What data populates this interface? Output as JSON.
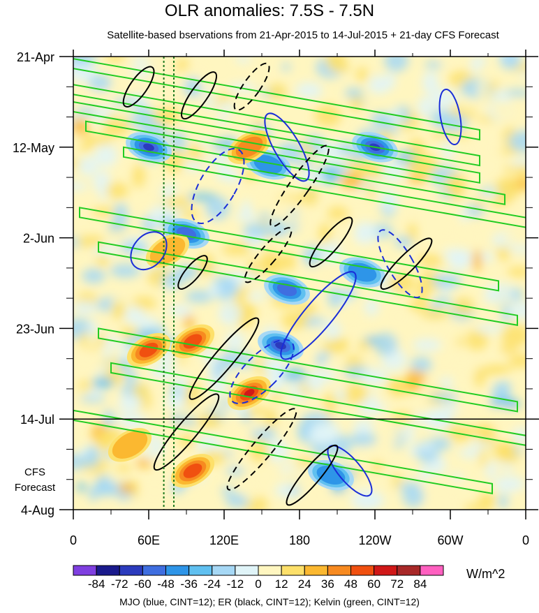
{
  "title": "OLR anomalies: 7.5S - 7.5N",
  "subtitle": "Satellite-based bservations from 21-Apr-2015 to 14-Jul-2015 + 21-day CFS Forecast",
  "forecast_label": [
    "CFS",
    "Forecast"
  ],
  "footer": "MJO (blue, CINT=12); ER (black, CINT=12); Kelvin (green, CINT=12)",
  "colorbar": {
    "units": "W/m^2",
    "levels": [
      -84,
      -72,
      -60,
      -48,
      -36,
      -24,
      -12,
      0,
      12,
      24,
      36,
      48,
      60,
      72,
      84
    ],
    "colors": [
      "#7f3fe0",
      "#1a1a8c",
      "#2b3bbd",
      "#3f6ee0",
      "#2e95e8",
      "#60c0f0",
      "#a6d8f5",
      "#e0f4f8",
      "#fff6c0",
      "#fde06a",
      "#fbb830",
      "#f78a20",
      "#f05010",
      "#d01818",
      "#a82828",
      "#ff60c0"
    ]
  },
  "chart_data": {
    "type": "heatmap",
    "title": "OLR anomalies: 7.5S - 7.5N",
    "subtitle": "Satellite-based bservations from 21-Apr-2015 to 14-Jul-2015 + 21-day CFS Forecast",
    "x_ticks": [
      "0",
      "60E",
      "120E",
      "180",
      "120W",
      "60W",
      "0"
    ],
    "x_range_deg": [
      0,
      360
    ],
    "y_ticks": [
      "21-Apr",
      "12-May",
      "2-Jun",
      "23-Jun",
      "14-Jul",
      "4-Aug"
    ],
    "y_range": [
      "21-Apr-2015",
      "4-Aug-2015"
    ],
    "forecast_start": "14-Jul",
    "units": "W/m^2",
    "vertical_lines_deg": [
      72,
      80
    ],
    "overlays": [
      {
        "name": "MJO",
        "color": "blue",
        "cint": 12
      },
      {
        "name": "ER",
        "color": "black",
        "cint": 12
      },
      {
        "name": "Kelvin",
        "color": "green",
        "cint": 12
      }
    ],
    "anomaly_features": [
      {
        "type": "negative",
        "lon": 60,
        "date": "12-May",
        "value": -72
      },
      {
        "type": "negative",
        "lon": 155,
        "date": "16-May",
        "value": -48
      },
      {
        "type": "negative",
        "lon": 240,
        "date": "12-May",
        "value": -72
      },
      {
        "type": "negative",
        "lon": 90,
        "date": "1-Jun",
        "value": -60
      },
      {
        "type": "negative",
        "lon": 170,
        "date": "14-Jun",
        "value": -60
      },
      {
        "type": "negative",
        "lon": 165,
        "date": "27-Jun",
        "value": -72
      },
      {
        "type": "negative",
        "lon": 230,
        "date": "10-Jun",
        "value": -48
      },
      {
        "type": "negative",
        "lon": 205,
        "date": "27-Jul",
        "value": -48
      },
      {
        "type": "positive",
        "lon": 140,
        "date": "12-May",
        "value": 36
      },
      {
        "type": "positive",
        "lon": 75,
        "date": "5-Jun",
        "value": 24
      },
      {
        "type": "positive",
        "lon": 60,
        "date": "28-Jun",
        "value": 48
      },
      {
        "type": "positive",
        "lon": 95,
        "date": "26-Jun",
        "value": 48
      },
      {
        "type": "positive",
        "lon": 140,
        "date": "8-Jul",
        "value": 60
      },
      {
        "type": "positive",
        "lon": 95,
        "date": "26-Jul",
        "value": 48
      },
      {
        "type": "positive",
        "lon": 45,
        "date": "20-Jul",
        "value": 24
      }
    ]
  }
}
